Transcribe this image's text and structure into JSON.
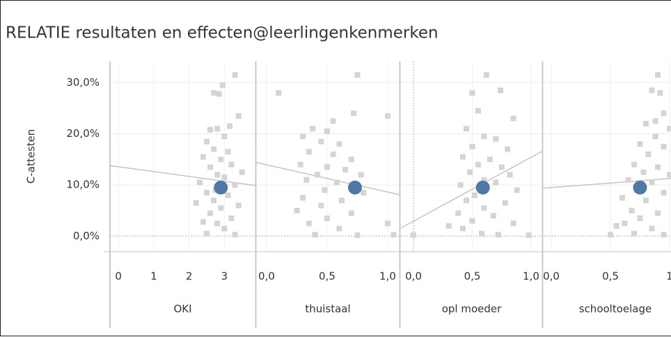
{
  "title": "RELATIE resultaten en effecten@leerlingenkenmerken",
  "y_label": "C-attesten",
  "ylim": [
    -3,
    34.2
  ],
  "yticks": [
    {
      "value": 0,
      "label": "0,0%"
    },
    {
      "value": 10,
      "label": "10,0%"
    },
    {
      "value": 20,
      "label": "20,0%"
    },
    {
      "value": 30,
      "label": "30,0%"
    }
  ],
  "chart_data": [
    {
      "type": "scatter",
      "x_label": "OKI",
      "xlim": [
        -0.24,
        3.88
      ],
      "xticks": [
        0,
        1,
        2,
        3
      ],
      "points": {
        "color": "#d4d4d4",
        "x": [
          2.7,
          2.85,
          3.3,
          2.95,
          3.4,
          2.6,
          2.8,
          3.0,
          2.5,
          2.7,
          3.1,
          2.4,
          2.9,
          3.2,
          2.6,
          3.5,
          2.8,
          3.0,
          2.3,
          3.3,
          2.5,
          3.1,
          2.7,
          2.2,
          3.4,
          2.9,
          2.6,
          3.2,
          2.8,
          3.0,
          2.5,
          3.3,
          2.4,
          3.15,
          2.75
        ],
        "y": [
          28,
          27.8,
          31.5,
          29.5,
          23.5,
          20.8,
          21,
          19.5,
          18.5,
          17,
          16.5,
          15.5,
          15,
          14,
          13.5,
          12.5,
          12,
          11.5,
          10.5,
          10,
          8.5,
          8,
          7,
          6.5,
          6,
          5.5,
          4.5,
          3.5,
          2.5,
          1.5,
          0.5,
          0.3,
          2.8,
          21.5,
          9
        ]
      },
      "highlight": {
        "color": "#4e79a7",
        "x": 2.9,
        "y": 9.5
      },
      "trend": {
        "color": "#c4c4c4",
        "x": [
          -0.24,
          3.88
        ],
        "y": [
          13.8,
          9.9
        ]
      }
    },
    {
      "type": "scatter",
      "x_label": "thuistaal",
      "xlim": [
        -0.086,
        1.098
      ],
      "xticks": [
        {
          "value": 0,
          "label": "0,0"
        },
        {
          "value": 0.5,
          "label": "0,5"
        },
        {
          "value": 1,
          "label": "1,0"
        }
      ],
      "points": {
        "color": "#d4d4d4",
        "x": [
          0.1,
          0.75,
          0.72,
          1.0,
          0.38,
          0.5,
          0.3,
          0.45,
          0.6,
          0.35,
          0.55,
          0.7,
          0.28,
          0.5,
          0.65,
          0.42,
          0.78,
          0.33,
          0.58,
          0.48,
          0.8,
          0.3,
          0.62,
          0.45,
          0.25,
          0.7,
          0.5,
          0.35,
          0.6,
          0.4,
          0.75,
          1.0,
          1.05,
          0.55
        ],
        "y": [
          28,
          31.5,
          24,
          23.5,
          21,
          20.5,
          19.5,
          18.5,
          18,
          16.5,
          16,
          15,
          14,
          13.5,
          13,
          12,
          12,
          11,
          10.5,
          9,
          8.5,
          7.5,
          7,
          6,
          5,
          4.5,
          3.5,
          2.5,
          1.5,
          0.3,
          0.2,
          2.5,
          0.3,
          22.5
        ]
      },
      "highlight": {
        "color": "#4e79a7",
        "x": 0.73,
        "y": 9.5
      },
      "trend": {
        "color": "#c4c4c4",
        "x": [
          -0.086,
          1.098
        ],
        "y": [
          14.4,
          8.1
        ]
      }
    },
    {
      "type": "scatter",
      "x_label": "opl moeder",
      "xlim": [
        -0.107,
        1.095
      ],
      "xticks": [
        {
          "value": 0,
          "label": "0,0"
        },
        {
          "value": 0.5,
          "label": "0,5"
        },
        {
          "value": 1,
          "label": "1,0"
        }
      ],
      "points": {
        "color": "#d4d4d4",
        "x": [
          0.62,
          0.5,
          0.74,
          0.55,
          0.85,
          0.45,
          0.6,
          0.7,
          0.5,
          0.8,
          0.42,
          0.65,
          0.55,
          0.75,
          0.48,
          0.82,
          0.6,
          0.4,
          0.7,
          0.88,
          0.52,
          0.45,
          0.78,
          0.6,
          0.38,
          0.68,
          0.5,
          0.85,
          0.42,
          0.58,
          0.72,
          0.98,
          0.0,
          0.3
        ],
        "y": [
          31.5,
          28,
          28.5,
          24.5,
          23,
          21,
          19.5,
          19,
          17.5,
          17,
          15.5,
          15,
          14,
          13.5,
          12.5,
          12,
          11,
          10,
          10.5,
          9,
          8,
          7,
          6.5,
          5.5,
          4.5,
          4,
          3,
          2.5,
          1.5,
          0.5,
          0.3,
          0.2,
          0.2,
          2
        ]
      },
      "highlight": {
        "color": "#4e79a7",
        "x": 0.59,
        "y": 9.5
      },
      "trend": {
        "color": "#c4c4c4",
        "x": [
          -0.107,
          1.095
        ],
        "y": [
          1.6,
          16.6
        ]
      }
    },
    {
      "type": "scatter",
      "x_label": "schooltoelage",
      "xlim": [
        -0.065,
        1.147
      ],
      "xticks": [
        {
          "value": 0,
          "label": "0,0"
        },
        {
          "value": 0.5,
          "label": "0,5"
        },
        1
      ],
      "points": {
        "color": "#d4d4d4",
        "x": [
          0.9,
          0.85,
          0.92,
          0.95,
          0.8,
          1.0,
          0.88,
          0.75,
          0.95,
          0.82,
          1.05,
          0.7,
          0.9,
          0.78,
          1.0,
          0.65,
          0.85,
          0.72,
          0.95,
          0.6,
          0.8,
          1.05,
          0.68,
          0.9,
          0.75,
          0.62,
          0.85,
          0.7,
          0.95,
          0.55,
          0.5,
          1.1,
          0.88
        ],
        "y": [
          31.5,
          28.5,
          28,
          24,
          22,
          21,
          19.5,
          18,
          17.5,
          16,
          15,
          14,
          13.5,
          12.5,
          12,
          11,
          10.5,
          9,
          8.5,
          7.5,
          7,
          6,
          5,
          4.5,
          3.5,
          2.5,
          1.5,
          0.5,
          0.3,
          2,
          0.3,
          10,
          22.5
        ]
      },
      "highlight": {
        "color": "#4e79a7",
        "x": 0.75,
        "y": 9.5
      },
      "trend": {
        "color": "#c4c4c4",
        "x": [
          -0.065,
          1.147
        ],
        "y": [
          9.4,
          11.5
        ]
      }
    }
  ]
}
